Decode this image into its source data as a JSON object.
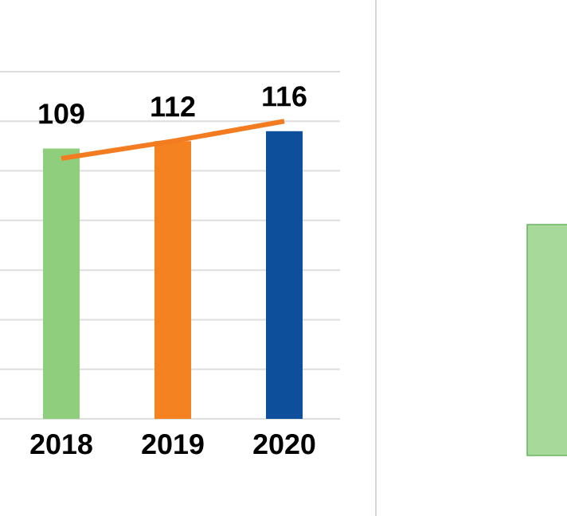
{
  "chart_data": {
    "type": "bar",
    "categories": [
      "2018",
      "2019",
      "2020"
    ],
    "series": [
      {
        "colors": [
          "#8fce7c",
          "#f58220",
          "#0d4f9a"
        ],
        "values": [
          109,
          112,
          116
        ],
        "value_labels": [
          "109",
          "112",
          "116"
        ]
      },
      {
        "type": "line",
        "color": "#f47c20",
        "values": [
          105,
          112,
          120
        ]
      }
    ],
    "ylim": [
      0,
      140
    ],
    "yticks": [
      {
        "value": 0,
        "label": null
      },
      {
        "value": 20,
        "label": null
      },
      {
        "value": 40,
        "label": null
      },
      {
        "value": 60,
        "label": null
      },
      {
        "value": 80,
        "label": null
      },
      {
        "value": 100,
        "label": null
      },
      {
        "value": 120,
        "label": null
      },
      {
        "value": 140,
        "label": null
      }
    ],
    "tick_labels": "x",
    "grid": "y",
    "marker": "none",
    "line_style": "solid"
  }
}
